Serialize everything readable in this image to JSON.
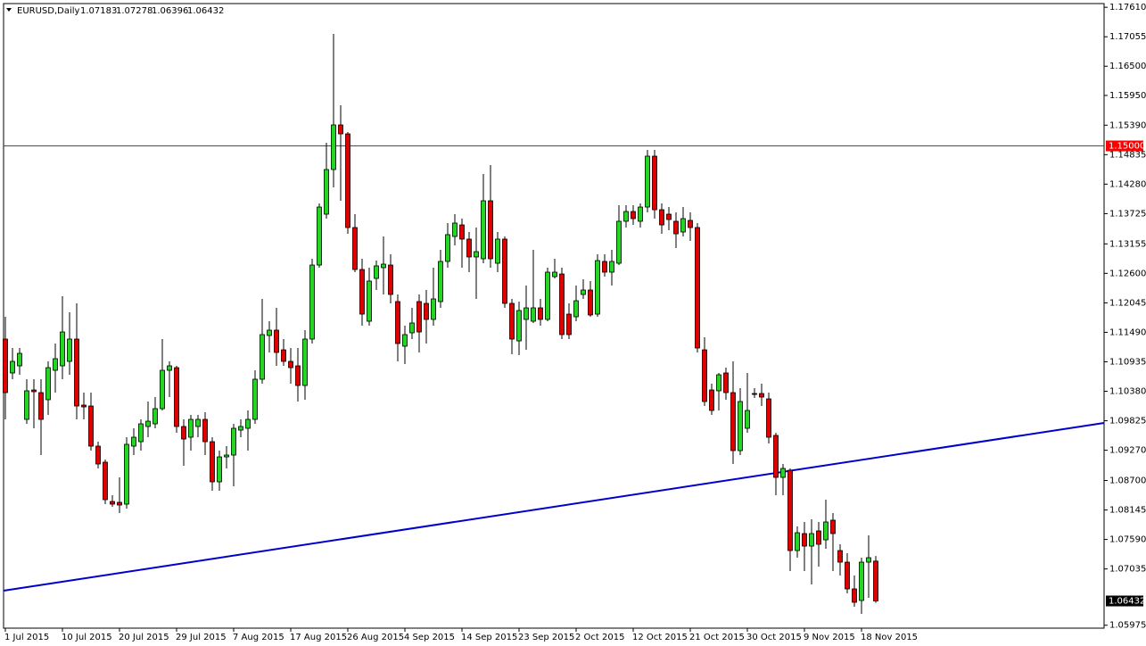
{
  "chart_data": {
    "type": "candlestick",
    "title": "EURUSD,Daily",
    "categories": [
      "1 Jul 2015",
      null,
      null,
      null,
      null,
      null,
      null,
      null,
      "10 Jul 2015",
      null,
      null,
      null,
      null,
      null,
      null,
      null,
      "20 Jul 2015",
      null,
      null,
      null,
      null,
      null,
      null,
      null,
      "29 Jul 2015",
      null,
      null,
      null,
      null,
      null,
      null,
      null,
      "7 Aug 2015",
      null,
      null,
      null,
      null,
      null,
      null,
      null,
      "17 Aug 2015",
      null,
      null,
      null,
      null,
      null,
      null,
      null,
      "26 Aug 2015",
      null,
      null,
      null,
      null,
      null,
      null,
      null,
      "4 Sep 2015",
      null,
      null,
      null,
      null,
      null,
      null,
      null,
      "14 Sep 2015",
      null,
      null,
      null,
      null,
      null,
      null,
      null,
      "23 Sep 2015",
      null,
      null,
      null,
      null,
      null,
      null,
      null,
      "2 Oct 2015",
      null,
      null,
      null,
      null,
      null,
      null,
      null,
      "12 Oct 2015",
      null,
      null,
      null,
      null,
      null,
      null,
      null,
      "21 Oct 2015",
      null,
      null,
      null,
      null,
      null,
      null,
      null,
      "30 Oct 2015",
      null,
      null,
      null,
      null,
      null,
      null,
      null,
      "9 Nov 2015",
      null,
      null,
      null,
      null,
      null,
      null,
      null,
      "18 Nov 2015",
      null,
      null
    ],
    "open": [
      1.11363,
      1.10725,
      1.10859,
      1.09851,
      1.10405,
      1.10355,
      1.10221,
      1.10775,
      1.10859,
      1.10943,
      1.11363,
      1.1012,
      1.10103,
      1.09347,
      1.09045,
      1.08305,
      1.08289,
      1.08255,
      1.09347,
      1.09431,
      1.09717,
      1.09767,
      1.10053,
      1.10775,
      1.10825,
      1.09717,
      1.09515,
      1.09717,
      1.09851,
      1.09431,
      1.08675,
      1.09145,
      1.09179,
      1.09649,
      1.09683,
      1.09851,
      1.10607,
      1.1143,
      1.11531,
      1.11161,
      1.10943,
      1.10859,
      1.10489,
      1.11363,
      1.12757,
      1.13715,
      1.14555,
      1.15395,
      1.15227,
      1.13463,
      1.12673,
      1.11699,
      1.12505,
      1.12707,
      1.12757,
      1.12069,
      1.11229,
      1.11481,
      1.12069,
      1.12035,
      1.11733,
      1.12069,
      1.12825,
      1.13295,
      1.13513,
      1.13245,
      1.12909,
      1.12875,
      1.13967,
      1.12791,
      1.13245,
      1.12035,
      1.11329,
      1.11733,
      1.11699,
      1.11951,
      1.11733,
      1.12539,
      1.12589,
      1.11833,
      1.11783,
      1.12203,
      1.12287,
      1.11833,
      1.12825,
      1.12623,
      1.12791,
      1.13581,
      1.13765,
      1.13581,
      1.13849,
      1.14807,
      1.13799,
      1.13715,
      1.13581,
      1.13379,
      1.13597,
      1.13463,
      1.11161,
      1.10405,
      1.10389,
      1.10725,
      1.10355,
      1.09263,
      1.09683,
      1.10338,
      1.10338,
      1.10237,
      1.09549,
      1.08759,
      1.08893,
      1.07381,
      1.07701,
      1.07465,
      1.07751,
      1.07583,
      1.07953,
      1.07381,
      1.07163,
      1.06659,
      1.06441,
      1.07163,
      1.07183
    ],
    "high": [
      1.11783,
      1.11195,
      1.11195,
      1.10607,
      1.10607,
      1.10607,
      1.10943,
      1.11279,
      1.12169,
      1.11867,
      1.12035,
      1.10355,
      1.10355,
      1.09431,
      1.09095,
      1.08423,
      1.08759,
      1.09515,
      1.09683,
      1.09851,
      1.10187,
      1.10271,
      1.11363,
      1.10943,
      1.10859,
      1.09851,
      1.09935,
      1.09935,
      1.09985,
      1.09515,
      1.09263,
      1.09347,
      1.09767,
      1.09851,
      1.10019,
      1.10775,
      1.12119,
      1.11699,
      1.11951,
      1.11363,
      1.11195,
      1.11195,
      1.11531,
      1.12875,
      1.13917,
      1.15059,
      1.17109,
      1.15765,
      1.15261,
      1.13715,
      1.12875,
      1.12707,
      1.12841,
      1.13295,
      1.12959,
      1.12203,
      1.11615,
      1.11951,
      1.12203,
      1.12287,
      1.12707,
      1.13043,
      1.13547,
      1.13715,
      1.13631,
      1.13379,
      1.13463,
      1.14471,
      1.14639,
      1.13379,
      1.13295,
      1.12119,
      1.12069,
      1.12371,
      1.13043,
      1.12119,
      1.12707,
      1.12875,
      1.12707,
      1.12035,
      1.12371,
      1.12489,
      1.12455,
      1.12959,
      1.12959,
      1.13043,
      1.13883,
      1.13883,
      1.13883,
      1.13917,
      1.14925,
      1.14925,
      1.13917,
      1.13849,
      1.13749,
      1.13849,
      1.13749,
      1.13547,
      1.11397,
      1.10523,
      1.10725,
      1.10825,
      1.10943,
      1.10439,
      1.10725,
      1.10439,
      1.10523,
      1.10355,
      1.09599,
      1.09011,
      1.08927,
      1.07835,
      1.07919,
      1.07969,
      1.07919,
      1.08339,
      1.08087,
      1.07499,
      1.07331,
      1.06911,
      1.07247,
      1.07667,
      1.07278
    ],
    "low": [
      1.09851,
      1.10607,
      1.10691,
      1.09767,
      1.09683,
      1.09179,
      1.09935,
      1.10355,
      1.10607,
      1.10691,
      1.09851,
      1.09851,
      1.09263,
      1.08927,
      1.08255,
      1.08205,
      1.08087,
      1.08171,
      1.09179,
      1.09263,
      1.09515,
      1.09683,
      1.10019,
      1.10271,
      1.09599,
      1.08977,
      1.09263,
      1.09515,
      1.09179,
      1.08507,
      1.08507,
      1.08927,
      1.08591,
      1.09515,
      1.09263,
      1.09767,
      1.10523,
      1.11111,
      1.10859,
      1.10859,
      1.10523,
      1.10187,
      1.10221,
      1.11279,
      1.12707,
      1.13631,
      1.14219,
      1.13967,
      1.13345,
      1.12623,
      1.11615,
      1.11615,
      1.12287,
      1.12203,
      1.12035,
      1.10943,
      1.10893,
      1.11363,
      1.11111,
      1.11279,
      1.11615,
      1.11951,
      1.12707,
      1.13127,
      1.12707,
      1.12623,
      1.12119,
      1.12791,
      1.12707,
      1.12623,
      1.11951,
      1.11077,
      1.11061,
      1.11161,
      1.11665,
      1.11615,
      1.11699,
      1.12505,
      1.11363,
      1.11363,
      1.11699,
      1.12119,
      1.11783,
      1.11783,
      1.12539,
      1.12371,
      1.12757,
      1.13463,
      1.13513,
      1.13463,
      1.13749,
      1.13631,
      1.13345,
      1.13413,
      1.13077,
      1.13295,
      1.13211,
      1.11111,
      1.10103,
      1.09935,
      1.10019,
      1.10221,
      1.09011,
      1.09179,
      1.09599,
      1.10254,
      1.10103,
      1.09397,
      1.08423,
      1.08423,
      1.06995,
      1.07247,
      1.06995,
      1.06743,
      1.07079,
      1.07415,
      1.06995,
      1.06911,
      1.06575,
      1.06323,
      1.06189,
      1.06491,
      1.06396
    ],
    "close": [
      1.10355,
      1.10943,
      1.11094,
      1.10389,
      1.10372,
      1.09851,
      1.10825,
      1.10993,
      1.11497,
      1.11363,
      1.10103,
      1.10086,
      1.09347,
      1.09011,
      1.08339,
      1.08255,
      1.08238,
      1.09381,
      1.09515,
      1.09767,
      1.09817,
      1.10053,
      1.10775,
      1.10859,
      1.09717,
      1.09481,
      1.09851,
      1.09851,
      1.09431,
      1.08675,
      1.09145,
      1.09179,
      1.09683,
      1.09717,
      1.09851,
      1.10607,
      1.11447,
      1.11531,
      1.11111,
      1.10943,
      1.10825,
      1.10489,
      1.11363,
      1.12757,
      1.13849,
      1.14555,
      1.15395,
      1.15227,
      1.13463,
      1.12673,
      1.11833,
      1.12455,
      1.12741,
      1.12774,
      1.12203,
      1.11279,
      1.11447,
      1.11665,
      1.11497,
      1.11733,
      1.12119,
      1.12825,
      1.13329,
      1.13547,
      1.13245,
      1.12909,
      1.13009,
      1.13967,
      1.12875,
      1.13245,
      1.12035,
      1.11363,
      1.11901,
      1.11951,
      1.11951,
      1.11733,
      1.12623,
      1.12623,
      1.11447,
      1.11447,
      1.12085,
      1.12287,
      1.11817,
      1.12841,
      1.12623,
      1.12825,
      1.13581,
      1.13765,
      1.13631,
      1.13849,
      1.14807,
      1.13799,
      1.13513,
      1.13614,
      1.13345,
      1.13631,
      1.13463,
      1.11195,
      1.10187,
      1.10019,
      1.10691,
      1.10355,
      1.09263,
      1.10187,
      1.10019,
      1.10321,
      1.10271,
      1.09515,
      1.08759,
      1.08927,
      1.07381,
      1.07717,
      1.07465,
      1.07701,
      1.07499,
      1.07919,
      1.07701,
      1.07163,
      1.06659,
      1.06407,
      1.07163,
      1.07247,
      1.06432
    ],
    "up_color": "#22d622",
    "down_color": "#e00000",
    "level": {
      "value": 1.15,
      "label": "1.15000",
      "color": "#ff0000"
    },
    "ylim": [
      1.0592,
      1.1768
    ],
    "yticks": [
      {
        "value": 1.1761,
        "label": "1.17610"
      },
      {
        "value": 1.17055,
        "label": "1.17055"
      },
      {
        "value": 1.165,
        "label": "1.16500"
      },
      {
        "value": 1.1595,
        "label": "1.15950"
      },
      {
        "value": 1.1539,
        "label": "1.15390"
      },
      {
        "value": 1.14835,
        "label": "1.14835"
      },
      {
        "value": 1.1428,
        "label": "1.14280"
      },
      {
        "value": 1.13725,
        "label": "1.13725"
      },
      {
        "value": 1.13155,
        "label": "1.13155"
      },
      {
        "value": 1.126,
        "label": "1.12600"
      },
      {
        "value": 1.12045,
        "label": "1.12045"
      },
      {
        "value": 1.1149,
        "label": "1.11490"
      },
      {
        "value": 1.10935,
        "label": "1.10935"
      },
      {
        "value": 1.1038,
        "label": "1.10380"
      },
      {
        "value": 1.09825,
        "label": "1.09825"
      },
      {
        "value": 1.0927,
        "label": "1.09270"
      },
      {
        "value": 1.087,
        "label": "1.08700"
      },
      {
        "value": 1.08145,
        "label": "1.08145"
      },
      {
        "value": 1.0759,
        "label": "1.07590"
      },
      {
        "value": 1.07035,
        "label": "1.07035"
      },
      {
        "value": 1.05975,
        "label": "1.05975"
      }
    ]
  }
}
